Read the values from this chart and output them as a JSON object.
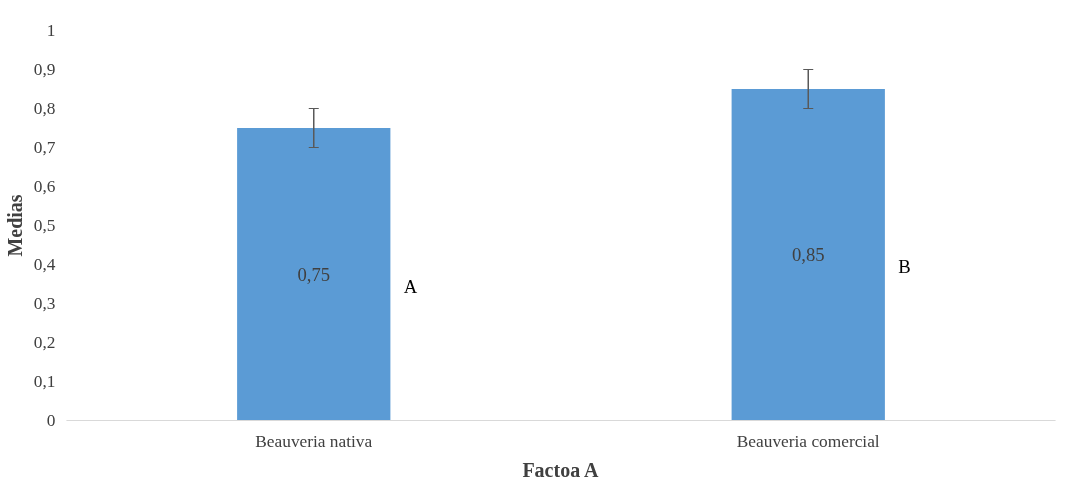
{
  "chart_data": {
    "type": "bar",
    "xlabel": "Factoa A",
    "ylabel": "Medias",
    "categories": [
      "Beauveria nativa",
      "Beauveria comercial"
    ],
    "values": [
      0.75,
      0.85
    ],
    "color": "#5b9bd5",
    "errors": [
      0.05,
      0.05
    ],
    "value_labels": [
      "0,75",
      "0,85"
    ],
    "annotations": [
      "A",
      "B"
    ],
    "ylim": [
      0,
      1
    ],
    "yticks": [
      0,
      {
        "value": 0.1,
        "label": "0,1"
      },
      {
        "value": 0.2,
        "label": "0,2"
      },
      {
        "value": 0.3,
        "label": "0,3"
      },
      {
        "value": 0.4,
        "label": "0,4"
      },
      {
        "value": 0.5,
        "label": "0,5"
      },
      {
        "value": 0.6,
        "label": "0,6"
      },
      {
        "value": 0.7,
        "label": "0,7"
      },
      {
        "value": 0.8,
        "label": "0,8"
      },
      {
        "value": 0.9,
        "label": "0,9"
      },
      1
    ],
    "grid": false
  }
}
